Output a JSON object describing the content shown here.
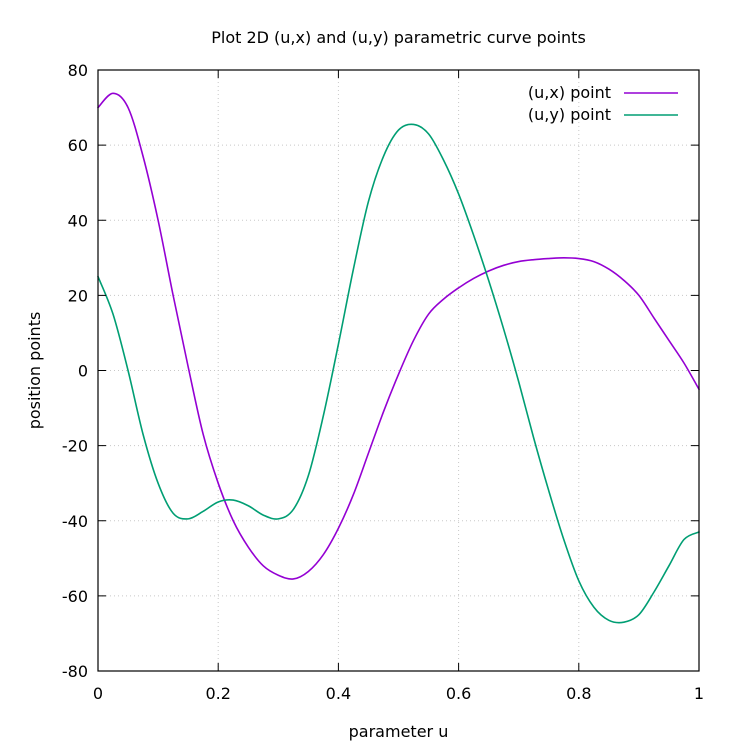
{
  "chart_data": {
    "type": "line",
    "title": "Plot 2D (u,x) and (u,y) parametric curve points",
    "xlabel": "parameter u",
    "ylabel": "position points",
    "xlim": [
      0,
      1
    ],
    "ylim": [
      -80,
      80
    ],
    "grid": true,
    "legend_position": "top-right",
    "x_ticks": [
      0,
      0.2,
      0.4,
      0.6,
      0.8,
      1
    ],
    "x_tick_labels": [
      "0",
      "0.2",
      "0.4",
      "0.6",
      "0.8",
      "1"
    ],
    "y_ticks": [
      -80,
      -60,
      -40,
      -20,
      0,
      20,
      40,
      60,
      80
    ],
    "y_tick_labels": [
      "-80",
      "-60",
      "-40",
      "-20",
      "0",
      "20",
      "40",
      "60",
      "80"
    ],
    "x": [
      0,
      0.025,
      0.05,
      0.075,
      0.1,
      0.125,
      0.15,
      0.175,
      0.2,
      0.225,
      0.25,
      0.275,
      0.3,
      0.325,
      0.35,
      0.375,
      0.4,
      0.425,
      0.45,
      0.475,
      0.5,
      0.525,
      0.55,
      0.575,
      0.6,
      0.625,
      0.65,
      0.675,
      0.7,
      0.725,
      0.75,
      0.775,
      0.8,
      0.825,
      0.85,
      0.875,
      0.9,
      0.925,
      0.95,
      0.975,
      1
    ],
    "series": [
      {
        "name": "(u,x) point",
        "color": "#9400d3",
        "values": [
          70,
          73.8,
          70,
          57,
          40,
          20,
          1,
          -17,
          -30,
          -40,
          -47,
          -52,
          -54.5,
          -55.5,
          -53.5,
          -49,
          -42,
          -33,
          -22,
          -11,
          -1,
          8,
          15,
          19,
          22,
          24.5,
          26.5,
          28,
          29,
          29.5,
          29.8,
          30,
          29.8,
          29,
          27,
          24,
          20,
          14,
          8,
          2,
          -5
        ]
      },
      {
        "name": "(u,y) point",
        "color": "#009e73",
        "values": [
          25,
          15,
          0,
          -17,
          -30,
          -38,
          -39.5,
          -37.5,
          -35,
          -34.5,
          -36,
          -38.5,
          -39.5,
          -37,
          -28,
          -12,
          7,
          27,
          45,
          57,
          64,
          65.5,
          63,
          56,
          47,
          36,
          24,
          11,
          -3,
          -18,
          -32,
          -45,
          -56,
          -63,
          -66.5,
          -67,
          -65,
          -59,
          -52,
          -45,
          -43
        ]
      }
    ]
  }
}
